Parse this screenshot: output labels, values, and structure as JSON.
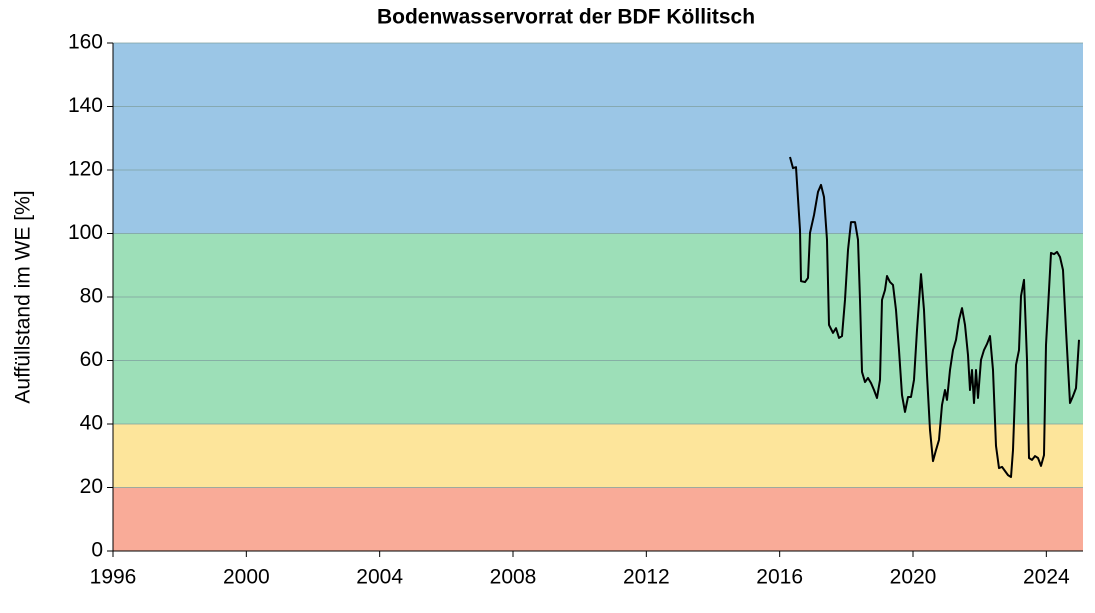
{
  "chart_data": {
    "type": "line",
    "title": "Bodenwasservorrat der BDF Köllitsch",
    "y_label": "Auffüllstand im WE [%]",
    "xlim": [
      1996,
      2025.1
    ],
    "xticks": [
      1996,
      2000,
      2004,
      2008,
      2012,
      2016,
      2020,
      2024
    ],
    "ylim": [
      0,
      160
    ],
    "yticks": [
      0,
      20,
      40,
      60,
      80,
      100,
      120,
      140,
      160
    ],
    "grid": true,
    "bands": [
      {
        "from": 0,
        "to": 20,
        "color": "#f9ab98"
      },
      {
        "from": 20,
        "to": 40,
        "color": "#fde59b"
      },
      {
        "from": 40,
        "to": 100,
        "color": "#9ddfb8"
      },
      {
        "from": 100,
        "to": 160,
        "color": "#9bc6e6"
      }
    ],
    "series": [
      {
        "color": "#000000",
        "x": [
          2016.31,
          2016.4,
          2016.49,
          2016.61,
          2016.64,
          2016.76,
          2016.85,
          2016.91,
          2017.03,
          2017.15,
          2017.24,
          2017.33,
          2017.42,
          2017.48,
          2017.6,
          2017.69,
          2017.78,
          2017.87,
          2017.96,
          2018.05,
          2018.14,
          2018.26,
          2018.35,
          2018.41,
          2018.47,
          2018.56,
          2018.65,
          2018.74,
          2018.83,
          2018.92,
          2019.01,
          2019.07,
          2019.16,
          2019.22,
          2019.31,
          2019.4,
          2019.49,
          2019.58,
          2019.67,
          2019.76,
          2019.85,
          2019.94,
          2020.03,
          2020.12,
          2020.24,
          2020.33,
          2020.42,
          2020.51,
          2020.6,
          2020.69,
          2020.78,
          2020.87,
          2020.96,
          2021.02,
          2021.11,
          2021.2,
          2021.29,
          2021.38,
          2021.47,
          2021.56,
          2021.65,
          2021.71,
          2021.77,
          2021.83,
          2021.89,
          2021.95,
          2022.04,
          2022.13,
          2022.22,
          2022.31,
          2022.4,
          2022.49,
          2022.58,
          2022.67,
          2022.76,
          2022.85,
          2022.94,
          2023.0,
          2023.09,
          2023.18,
          2023.24,
          2023.33,
          2023.42,
          2023.48,
          2023.57,
          2023.66,
          2023.75,
          2023.84,
          2023.93,
          2023.99,
          2024.08,
          2024.14,
          2024.23,
          2024.32,
          2024.41,
          2024.5,
          2024.59,
          2024.71,
          2024.8,
          2024.89,
          2024.98
        ],
        "values": [
          124.1,
          120.6,
          120.9,
          101.1,
          85.0,
          84.7,
          86.0,
          100.2,
          105.8,
          113.1,
          115.3,
          111.5,
          98.0,
          71.2,
          68.7,
          70.2,
          67.1,
          67.7,
          79.1,
          94.8,
          103.6,
          103.6,
          98.0,
          79.1,
          56.4,
          53.2,
          54.5,
          52.9,
          50.7,
          48.2,
          53.9,
          79.1,
          82.2,
          86.6,
          84.7,
          83.8,
          75.9,
          63.3,
          49.1,
          43.8,
          48.5,
          48.5,
          53.9,
          69.6,
          87.2,
          75.9,
          55.4,
          38.1,
          28.3,
          31.8,
          35.0,
          46.0,
          50.7,
          47.6,
          57.0,
          63.3,
          66.5,
          72.8,
          76.5,
          71.2,
          61.7,
          50.7,
          57.0,
          46.6,
          57.0,
          48.2,
          60.2,
          63.3,
          65.2,
          67.7,
          57.0,
          33.1,
          26.1,
          26.5,
          25.2,
          23.9,
          23.3,
          31.8,
          58.6,
          63.3,
          80.3,
          85.4,
          60.2,
          29.3,
          28.7,
          29.9,
          29.3,
          26.8,
          30.2,
          64.9,
          82.2,
          93.9,
          93.5,
          94.2,
          92.6,
          88.5,
          69.6,
          46.6,
          48.8,
          51.3,
          66.5
        ]
      }
    ]
  }
}
